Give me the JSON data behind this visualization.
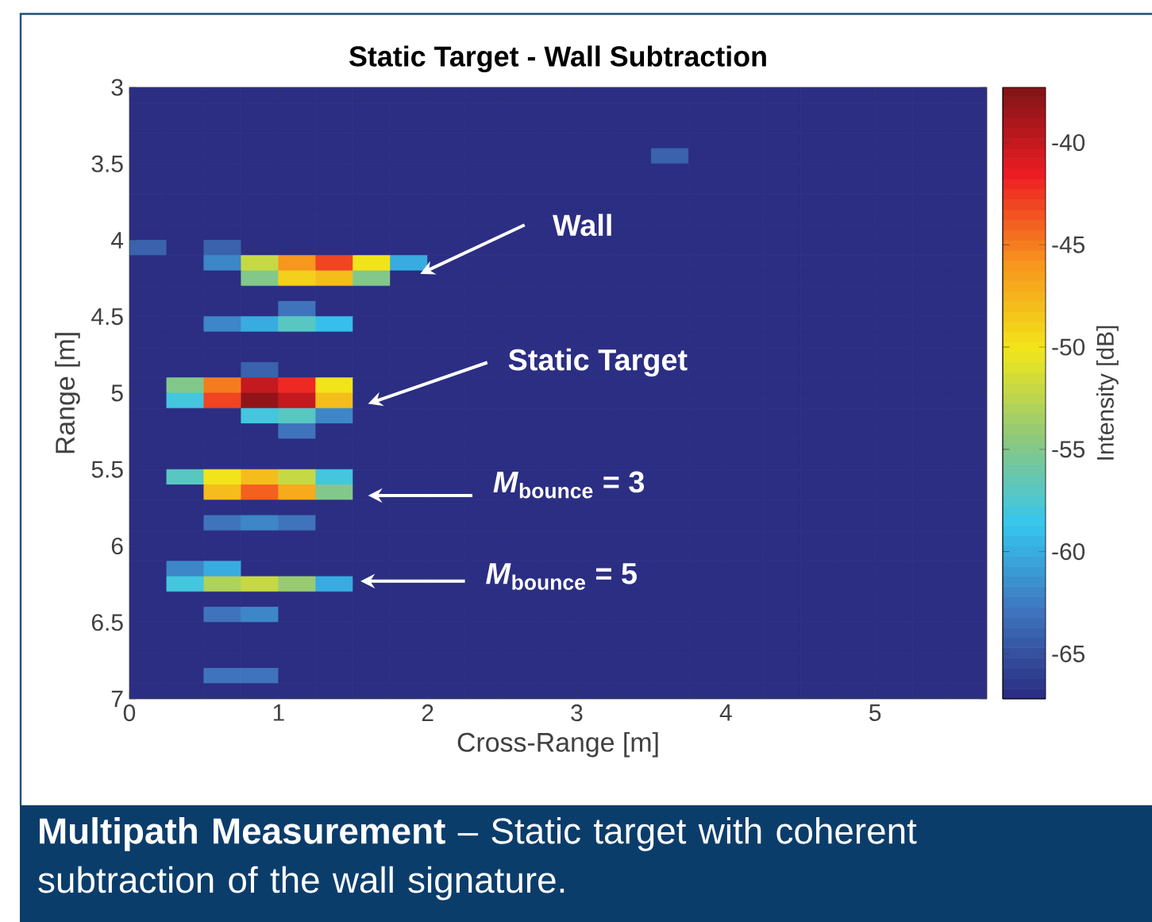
{
  "chart_data": {
    "type": "heatmap",
    "title": "Static Target - Wall Subtraction",
    "xlabel": "Cross-Range [m]",
    "ylabel": "Range [m]",
    "clabel": "Intensity [dB]",
    "x": [
      0.125,
      0.375,
      0.625,
      0.875,
      1.125,
      1.375,
      1.625,
      1.875,
      2.125,
      2.375,
      2.625,
      2.875,
      3.125,
      3.375,
      3.625,
      3.875,
      4.125,
      4.375,
      4.625,
      4.875,
      5.125,
      5.375,
      5.625
    ],
    "y": [
      3.05,
      3.15,
      3.25,
      3.35,
      3.45,
      3.55,
      3.65,
      3.75,
      3.85,
      3.95,
      4.05,
      4.15,
      4.25,
      4.35,
      4.45,
      4.55,
      4.65,
      4.75,
      4.85,
      4.95,
      5.05,
      5.15,
      5.25,
      5.35,
      5.45,
      5.55,
      5.65,
      5.75,
      5.85,
      5.95,
      6.05,
      6.15,
      6.25,
      6.35,
      6.45,
      6.55,
      6.65,
      6.75,
      6.85,
      6.95
    ],
    "xlim": [
      0,
      5.75
    ],
    "xticks": [
      0,
      1,
      2,
      3,
      4,
      5
    ],
    "ylim": [
      7,
      3
    ],
    "yticks": [
      3,
      3.5,
      4,
      4.5,
      5,
      5.5,
      6,
      6.5,
      7
    ],
    "clim": [
      -67.2,
      -37.3
    ],
    "cticks": [
      -65,
      -60,
      -55,
      -50,
      -45,
      -40
    ],
    "cells": [
      [
        -67,
        -67,
        -67,
        -67,
        -67,
        -67,
        -67,
        -67,
        -67,
        -67,
        -67,
        -67,
        -67,
        -67,
        -67,
        -67,
        -67,
        -67,
        -67,
        -67,
        -67,
        -67,
        -67
      ],
      [
        -67,
        -67,
        -67,
        -67,
        -67,
        -67,
        -67,
        -67,
        -67,
        -67,
        -67,
        -67,
        -67,
        -67,
        -67,
        -67,
        -67,
        -67,
        -67,
        -67,
        -67,
        -67,
        -67
      ],
      [
        -67,
        -67,
        -67,
        -67,
        -67,
        -67,
        -67,
        -67,
        -67,
        -67,
        -67,
        -67,
        -67,
        -67,
        -67,
        -67,
        -67,
        -67,
        -67,
        -67,
        -67,
        -67,
        -67
      ],
      [
        -67,
        -67,
        -67,
        -67,
        -67,
        -67,
        -67,
        -67,
        -67,
        -67,
        -67,
        -67,
        -67,
        -67,
        -67,
        -67,
        -67,
        -67,
        -67,
        -67,
        -67,
        -67,
        -67
      ],
      [
        -67,
        -67,
        -67,
        -67,
        -67,
        -67,
        -67,
        -67,
        -67,
        -67,
        -67,
        -67,
        -67,
        -67,
        -64,
        -67,
        -67,
        -67,
        -67,
        -67,
        -67,
        -67,
        -67
      ],
      [
        -67,
        -67,
        -67,
        -67,
        -67,
        -67,
        -67,
        -67,
        -67,
        -67,
        -67,
        -67,
        -67,
        -67,
        -67,
        -67,
        -67,
        -67,
        -67,
        -67,
        -67,
        -67,
        -67
      ],
      [
        -67,
        -67,
        -67,
        -67,
        -67,
        -67,
        -67,
        -67,
        -67,
        -67,
        -67,
        -67,
        -67,
        -67,
        -67,
        -67,
        -67,
        -67,
        -67,
        -67,
        -67,
        -67,
        -67
      ],
      [
        -67,
        -67,
        -67,
        -67,
        -67,
        -67,
        -67,
        -67,
        -67,
        -67,
        -67,
        -67,
        -67,
        -67,
        -67,
        -67,
        -67,
        -67,
        -67,
        -67,
        -67,
        -67,
        -67
      ],
      [
        -67,
        -67,
        -67,
        -67,
        -67,
        -67,
        -67,
        -67,
        -67,
        -67,
        -67,
        -67,
        -67,
        -67,
        -67,
        -67,
        -67,
        -67,
        -67,
        -67,
        -67,
        -67,
        -67
      ],
      [
        -67,
        -67,
        -67,
        -67,
        -67,
        -67,
        -67,
        -67,
        -67,
        -67,
        -67,
        -67,
        -67,
        -67,
        -67,
        -67,
        -67,
        -67,
        -67,
        -67,
        -67,
        -67,
        -67
      ],
      [
        -64,
        -67,
        -64,
        -67,
        -67,
        -67,
        -67,
        -67,
        -67,
        -67,
        -67,
        -67,
        -67,
        -67,
        -67,
        -67,
        -67,
        -67,
        -67,
        -67,
        -67,
        -67,
        -67
      ],
      [
        -67,
        -67,
        -62,
        -52,
        -46,
        -43,
        -50,
        -60,
        -67,
        -67,
        -67,
        -67,
        -67,
        -67,
        -67,
        -67,
        -67,
        -67,
        -67,
        -67,
        -67,
        -67,
        -67
      ],
      [
        -67,
        -67,
        -67,
        -55,
        -49,
        -48,
        -55,
        -67,
        -67,
        -67,
        -67,
        -67,
        -67,
        -67,
        -67,
        -67,
        -67,
        -67,
        -67,
        -67,
        -67,
        -67,
        -67
      ],
      [
        -67,
        -67,
        -67,
        -67,
        -67,
        -67,
        -67,
        -67,
        -67,
        -67,
        -67,
        -67,
        -67,
        -67,
        -67,
        -67,
        -67,
        -67,
        -67,
        -67,
        -67,
        -67,
        -67
      ],
      [
        -67,
        -67,
        -67,
        -67,
        -63,
        -67,
        -67,
        -67,
        -67,
        -67,
        -67,
        -67,
        -67,
        -67,
        -67,
        -67,
        -67,
        -67,
        -67,
        -67,
        -67,
        -67,
        -67
      ],
      [
        -67,
        -67,
        -62,
        -60,
        -57,
        -59,
        -67,
        -67,
        -67,
        -67,
        -67,
        -67,
        -67,
        -67,
        -67,
        -67,
        -67,
        -67,
        -67,
        -67,
        -67,
        -67,
        -67
      ],
      [
        -67,
        -67,
        -67,
        -67,
        -67,
        -67,
        -67,
        -67,
        -67,
        -67,
        -67,
        -67,
        -67,
        -67,
        -67,
        -67,
        -67,
        -67,
        -67,
        -67,
        -67,
        -67,
        -67
      ],
      [
        -67,
        -67,
        -67,
        -67,
        -67,
        -67,
        -67,
        -67,
        -67,
        -67,
        -67,
        -67,
        -67,
        -67,
        -67,
        -67,
        -67,
        -67,
        -67,
        -67,
        -67,
        -67,
        -67
      ],
      [
        -67,
        -67,
        -67,
        -64,
        -67,
        -67,
        -67,
        -67,
        -67,
        -67,
        -67,
        -67,
        -67,
        -67,
        -67,
        -67,
        -67,
        -67,
        -67,
        -67,
        -67,
        -67,
        -67
      ],
      [
        -67,
        -55,
        -45,
        -40,
        -42,
        -50,
        -67,
        -67,
        -67,
        -67,
        -67,
        -67,
        -67,
        -67,
        -67,
        -67,
        -67,
        -67,
        -67,
        -67,
        -67,
        -67,
        -67
      ],
      [
        -67,
        -58,
        -43,
        -38,
        -40,
        -48,
        -67,
        -67,
        -67,
        -67,
        -67,
        -67,
        -67,
        -67,
        -67,
        -67,
        -67,
        -67,
        -67,
        -67,
        -67,
        -67,
        -67
      ],
      [
        -67,
        -67,
        -67,
        -58,
        -57,
        -62,
        -67,
        -67,
        -67,
        -67,
        -67,
        -67,
        -67,
        -67,
        -67,
        -67,
        -67,
        -67,
        -67,
        -67,
        -67,
        -67,
        -67
      ],
      [
        -67,
        -67,
        -67,
        -67,
        -63,
        -67,
        -67,
        -67,
        -67,
        -67,
        -67,
        -67,
        -67,
        -67,
        -67,
        -67,
        -67,
        -67,
        -67,
        -67,
        -67,
        -67,
        -67
      ],
      [
        -67,
        -67,
        -67,
        -67,
        -67,
        -67,
        -67,
        -67,
        -67,
        -67,
        -67,
        -67,
        -67,
        -67,
        -67,
        -67,
        -67,
        -67,
        -67,
        -67,
        -67,
        -67,
        -67
      ],
      [
        -67,
        -67,
        -67,
        -67,
        -67,
        -67,
        -67,
        -67,
        -67,
        -67,
        -67,
        -67,
        -67,
        -67,
        -67,
        -67,
        -67,
        -67,
        -67,
        -67,
        -67,
        -67,
        -67
      ],
      [
        -67,
        -57,
        -50,
        -48,
        -52,
        -58,
        -67,
        -67,
        -67,
        -67,
        -67,
        -67,
        -67,
        -67,
        -67,
        -67,
        -67,
        -67,
        -67,
        -67,
        -67,
        -67,
        -67
      ],
      [
        -67,
        -67,
        -48,
        -44,
        -47,
        -55,
        -67,
        -67,
        -67,
        -67,
        -67,
        -67,
        -67,
        -67,
        -67,
        -67,
        -67,
        -67,
        -67,
        -67,
        -67,
        -67,
        -67
      ],
      [
        -67,
        -67,
        -67,
        -67,
        -67,
        -67,
        -67,
        -67,
        -67,
        -67,
        -67,
        -67,
        -67,
        -67,
        -67,
        -67,
        -67,
        -67,
        -67,
        -67,
        -67,
        -67,
        -67
      ],
      [
        -67,
        -67,
        -63,
        -62,
        -63,
        -67,
        -67,
        -67,
        -67,
        -67,
        -67,
        -67,
        -67,
        -67,
        -67,
        -67,
        -67,
        -67,
        -67,
        -67,
        -67,
        -67,
        -67
      ],
      [
        -67,
        -67,
        -67,
        -67,
        -67,
        -67,
        -67,
        -67,
        -67,
        -67,
        -67,
        -67,
        -67,
        -67,
        -67,
        -67,
        -67,
        -67,
        -67,
        -67,
        -67,
        -67,
        -67
      ],
      [
        -67,
        -67,
        -67,
        -67,
        -67,
        -67,
        -67,
        -67,
        -67,
        -67,
        -67,
        -67,
        -67,
        -67,
        -67,
        -67,
        -67,
        -67,
        -67,
        -67,
        -67,
        -67,
        -67
      ],
      [
        -67,
        -62,
        -60,
        -67,
        -67,
        -67,
        -67,
        -67,
        -67,
        -67,
        -67,
        -67,
        -67,
        -67,
        -67,
        -67,
        -67,
        -67,
        -67,
        -67,
        -67,
        -67,
        -67
      ],
      [
        -67,
        -58,
        -53,
        -52,
        -54,
        -60,
        -67,
        -67,
        -67,
        -67,
        -67,
        -67,
        -67,
        -67,
        -67,
        -67,
        -67,
        -67,
        -67,
        -67,
        -67,
        -67,
        -67
      ],
      [
        -67,
        -67,
        -67,
        -67,
        -67,
        -67,
        -67,
        -67,
        -67,
        -67,
        -67,
        -67,
        -67,
        -67,
        -67,
        -67,
        -67,
        -67,
        -67,
        -67,
        -67,
        -67,
        -67
      ],
      [
        -67,
        -67,
        -63,
        -62,
        -67,
        -67,
        -67,
        -67,
        -67,
        -67,
        -67,
        -67,
        -67,
        -67,
        -67,
        -67,
        -67,
        -67,
        -67,
        -67,
        -67,
        -67,
        -67
      ],
      [
        -67,
        -67,
        -67,
        -67,
        -67,
        -67,
        -67,
        -67,
        -67,
        -67,
        -67,
        -67,
        -67,
        -67,
        -67,
        -67,
        -67,
        -67,
        -67,
        -67,
        -67,
        -67,
        -67
      ],
      [
        -67,
        -67,
        -67,
        -67,
        -67,
        -67,
        -67,
        -67,
        -67,
        -67,
        -67,
        -67,
        -67,
        -67,
        -67,
        -67,
        -67,
        -67,
        -67,
        -67,
        -67,
        -67,
        -67
      ],
      [
        -67,
        -67,
        -67,
        -67,
        -67,
        -67,
        -67,
        -67,
        -67,
        -67,
        -67,
        -67,
        -67,
        -67,
        -67,
        -67,
        -67,
        -67,
        -67,
        -67,
        -67,
        -67,
        -67
      ],
      [
        -67,
        -67,
        -63,
        -63,
        -67,
        -67,
        -67,
        -67,
        -67,
        -67,
        -67,
        -67,
        -67,
        -67,
        -67,
        -67,
        -67,
        -67,
        -67,
        -67,
        -67,
        -67,
        -67
      ],
      [
        -67,
        -67,
        -67,
        -67,
        -67,
        -67,
        -67,
        -67,
        -67,
        -67,
        -67,
        -67,
        -67,
        -67,
        -67,
        -67,
        -67,
        -67,
        -67,
        -67,
        -67,
        -67,
        -67
      ]
    ],
    "annotations": [
      "Wall",
      "Static Target",
      "*M*$_{bounce}$ = 3",
      "*M*$_{bounce}$ = 5",
      "**Multipath Measurement** – Static target with coherent subtraction of the wall signature."
    ]
  }
}
